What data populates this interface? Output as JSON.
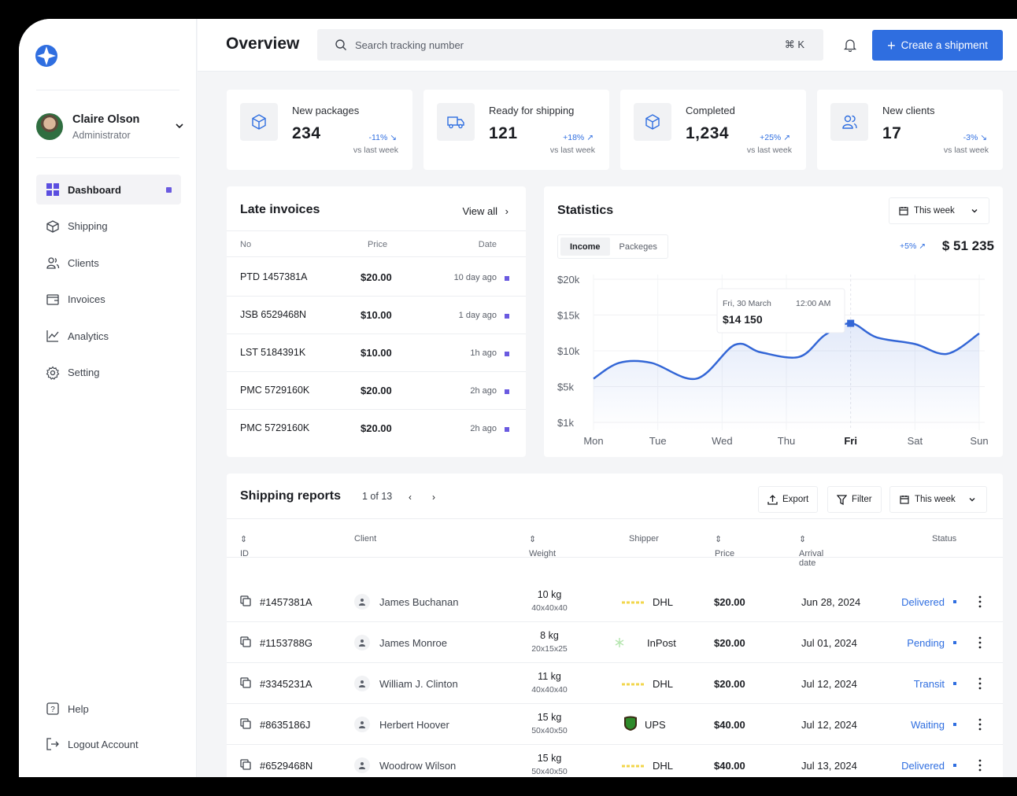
{
  "colors": {
    "accent": "#2f6ee0",
    "dot": "#6a5ae0",
    "chart_line": "#3366d6"
  },
  "app": {
    "title": "Overview"
  },
  "user": {
    "name": "Claire Olson",
    "role": "Administrator"
  },
  "sidebar": {
    "items": [
      {
        "label": "Dashboard",
        "icon": "grid-icon",
        "active": true
      },
      {
        "label": "Shipping",
        "icon": "box-icon"
      },
      {
        "label": "Clients",
        "icon": "users-icon"
      },
      {
        "label": "Invoices",
        "icon": "wallet-icon"
      },
      {
        "label": "Analytics",
        "icon": "chart-line-icon"
      },
      {
        "label": "Setting",
        "icon": "gear-icon"
      }
    ],
    "bottom": [
      {
        "label": "Help",
        "icon": "help-icon"
      },
      {
        "label": "Logout Account",
        "icon": "logout-icon"
      }
    ]
  },
  "header": {
    "search_placeholder": "Search tracking number",
    "search_shortcut": "⌘ K",
    "create_label": "Create a shipment"
  },
  "stats": [
    {
      "label": "New packages",
      "value": "234",
      "delta": "-11% ↘",
      "sub": "vs last week",
      "icon": "cube-icon"
    },
    {
      "label": "Ready for shipping",
      "value": "121",
      "delta": "+18% ↗",
      "sub": "vs last week",
      "icon": "truck-icon"
    },
    {
      "label": "Completed",
      "value": "1,234",
      "delta": "+25% ↗",
      "sub": "vs last week",
      "icon": "cube-icon"
    },
    {
      "label": "New clients",
      "value": "17",
      "delta": "-3% ↘",
      "sub": "vs last week",
      "icon": "users-icon"
    }
  ],
  "invoices": {
    "title": "Late invoices",
    "view_all": "View all",
    "columns": [
      "No",
      "Price",
      "Date"
    ],
    "rows": [
      {
        "no": "PTD 1457381A",
        "price": "$20.00",
        "date": "10 day ago"
      },
      {
        "no": "JSB 6529468N",
        "price": "$10.00",
        "date": "1 day ago"
      },
      {
        "no": "LST 5184391K",
        "price": "$10.00",
        "date": "1h ago"
      },
      {
        "no": "PMC 5729160K",
        "price": "$20.00",
        "date": "2h ago"
      },
      {
        "no": "PMC 5729160K",
        "price": "$20.00",
        "date": "2h ago"
      }
    ]
  },
  "statistics": {
    "title": "Statistics",
    "period": "This week",
    "tabs": [
      "Income",
      "Packeges"
    ],
    "active_tab": "Income",
    "delta": "+5% ↗",
    "total": "$ 51 235",
    "tooltip": {
      "date": "Fri, 30 March",
      "time": "12:00 AM",
      "value": "$14 150"
    }
  },
  "chart_data": {
    "type": "area",
    "categories": [
      "Mon",
      "Tue",
      "Wed",
      "Thu",
      "Fri",
      "Sat",
      "Sun"
    ],
    "y_ticks": [
      "$20k",
      "$15k",
      "$10k",
      "$5k",
      "$1k"
    ],
    "highlight": "Fri",
    "series": [
      {
        "x": [
          0,
          0.4,
          0.9,
          1.6,
          2.2,
          2.6,
          3.2,
          3.6,
          4.0,
          4.4,
          5.0,
          5.5,
          6.0
        ],
        "values": [
          6800,
          8900,
          8900,
          6800,
          11300,
          10300,
          9700,
          12600,
          14150,
          12300,
          11400,
          10100,
          12800
        ]
      }
    ]
  },
  "reports": {
    "title": "Shipping reports",
    "pager": "1 of 13",
    "export_label": "Export",
    "filter_label": "Filter",
    "period": "This week",
    "columns": [
      "ID",
      "Client",
      "Weight",
      "Shipper",
      "Price",
      "Arrival date",
      "Status"
    ],
    "rows": [
      {
        "id": "#1457381A",
        "client": "James Buchanan",
        "weight": "10 kg",
        "dims": "40x40x40",
        "shipper": "DHL",
        "price": "$20.00",
        "date": "Jun 28, 2024",
        "status": "Delivered"
      },
      {
        "id": "#1153788G",
        "client": "James Monroe",
        "weight": "8 kg",
        "dims": "20x15x25",
        "shipper": "InPost",
        "price": "$20.00",
        "date": "Jul 01, 2024",
        "status": "Pending"
      },
      {
        "id": "#3345231A",
        "client": "William J. Clinton",
        "weight": "11 kg",
        "dims": "40x40x40",
        "shipper": "DHL",
        "price": "$20.00",
        "date": "Jul 12, 2024",
        "status": "Transit"
      },
      {
        "id": "#8635186J",
        "client": "Herbert Hoover",
        "weight": "15 kg",
        "dims": "50x40x50",
        "shipper": "UPS",
        "price": "$40.00",
        "date": "Jul 12, 2024",
        "status": "Waiting"
      },
      {
        "id": "#6529468N",
        "client": "Woodrow Wilson",
        "weight": "15 kg",
        "dims": "50x40x50",
        "shipper": "DHL",
        "price": "$40.00",
        "date": "Jul 13, 2024",
        "status": "Delivered"
      }
    ]
  }
}
